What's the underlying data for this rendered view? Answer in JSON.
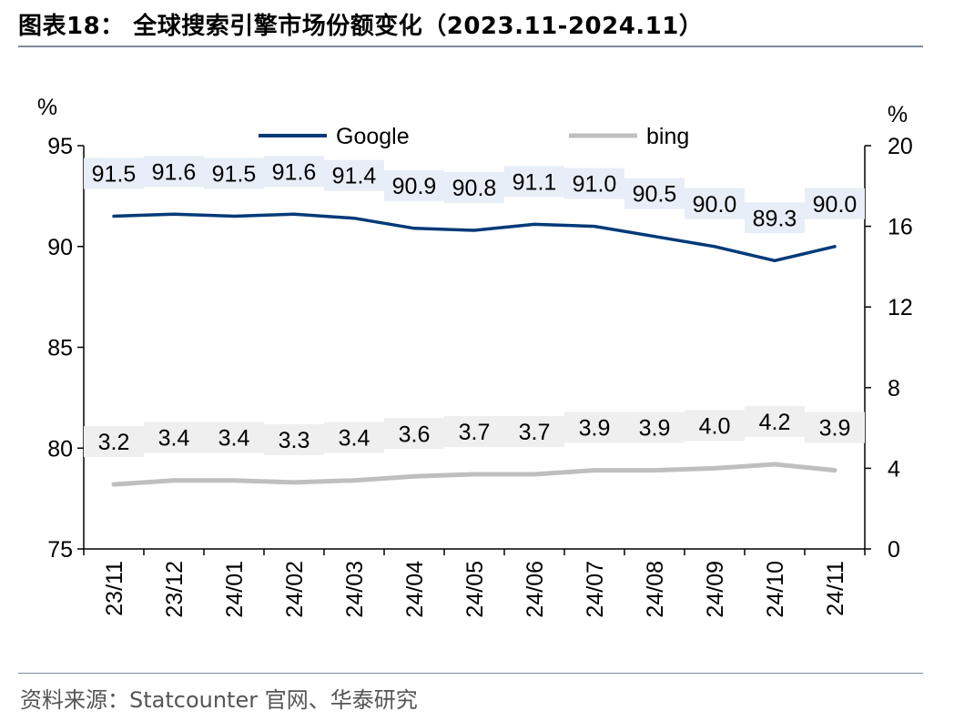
{
  "header": {
    "title": "图表18： 全球搜索引擎市场份额变化（2023.11-2024.11）"
  },
  "footer": {
    "source": "资料来源：Statcounter 官网、华泰研究"
  },
  "colors": {
    "google": "#003A78",
    "bing": "#BFBFBF",
    "label_box": "#E8EEF7",
    "label_box_gray": "#EFEFEF",
    "rule": "#7F8C9D"
  },
  "chart_data": {
    "type": "line",
    "title": "全球搜索引擎市场份额变化（2023.11-2024.11）",
    "categories": [
      "23/11",
      "23/12",
      "24/01",
      "24/02",
      "24/03",
      "24/04",
      "24/05",
      "24/06",
      "24/07",
      "24/08",
      "24/09",
      "24/10",
      "24/11"
    ],
    "left_axis": {
      "unit": "%",
      "min": 75,
      "max": 95,
      "ticks": [
        75,
        80,
        85,
        90,
        95
      ]
    },
    "right_axis": {
      "unit": "%",
      "min": 0,
      "max": 20,
      "ticks": [
        0,
        4,
        8,
        12,
        16,
        20
      ]
    },
    "legend_position": "top",
    "series": [
      {
        "name": "Google",
        "axis": "left",
        "color": "#003A78",
        "values": [
          91.5,
          91.6,
          91.5,
          91.6,
          91.4,
          90.9,
          90.8,
          91.1,
          91.0,
          90.5,
          90.0,
          89.3,
          90.0
        ]
      },
      {
        "name": "bing",
        "axis": "right",
        "color": "#BFBFBF",
        "values": [
          3.2,
          3.4,
          3.4,
          3.3,
          3.4,
          3.6,
          3.7,
          3.7,
          3.9,
          3.9,
          4.0,
          4.2,
          3.9
        ]
      }
    ],
    "google_labels": [
      "91.5",
      "91.6",
      "91.5",
      "91.6",
      "91.4",
      "90.9",
      "90.8",
      "91.1",
      "91.0",
      "90.5",
      "90.0",
      "89.3",
      "90.0"
    ],
    "bing_labels": [
      "3.2",
      "3.4",
      "3.4",
      "3.3",
      "3.4",
      "3.6",
      "3.7",
      "3.7",
      "3.9",
      "3.9",
      "4.0",
      "4.2",
      "3.9"
    ]
  }
}
